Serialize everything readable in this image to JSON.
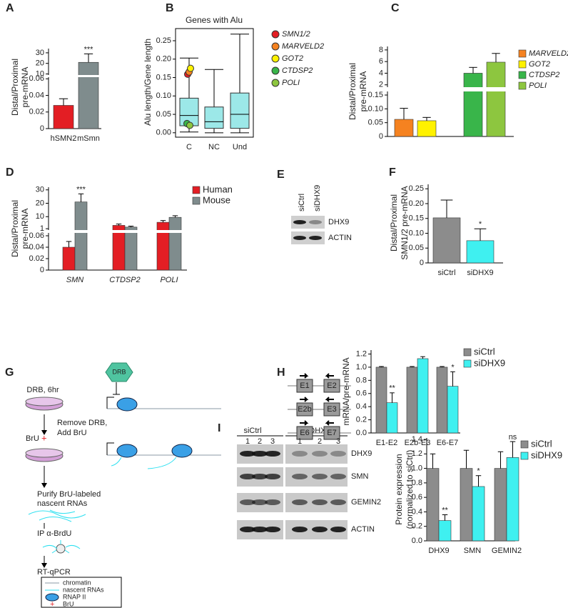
{
  "chart_data": [
    {
      "panel": "A",
      "type": "bar",
      "ylabel": [
        "Distal/Proximal",
        "pre-mRNA"
      ],
      "categories": [
        "hSMN2",
        "mSmn"
      ],
      "series": [
        {
          "colors": [
            "#e31e24",
            "#7f8c8d"
          ],
          "values": [
            0.028,
            21
          ],
          "errors": [
            0.008,
            8
          ],
          "annotations": [
            null,
            "***"
          ]
        }
      ],
      "segments": [
        {
          "ylim": [
            0,
            0.062
          ],
          "yticks": [
            0,
            0.02,
            0.04,
            0.06
          ]
        },
        {
          "ylim": [
            9,
            34
          ],
          "yticks": [
            10,
            20,
            30
          ]
        }
      ]
    },
    {
      "panel": "B",
      "type": "box",
      "title": "Genes with Alu",
      "ylabel": [
        "Alu length/Gene length"
      ],
      "categories": [
        "C",
        "NC",
        "Und"
      ],
      "color": "#9ce8e8",
      "boxes": [
        {
          "whislo": 0.002,
          "q1": 0.019,
          "med": 0.047,
          "q3": 0.094,
          "whishi": 0.203
        },
        {
          "whislo": 0.0,
          "q1": 0.012,
          "med": 0.03,
          "q3": 0.07,
          "whishi": 0.172
        },
        {
          "whislo": 0.0,
          "q1": 0.012,
          "med": 0.05,
          "q3": 0.108,
          "whishi": 0.268
        }
      ],
      "series": [
        {
          "name": "SMN1/2",
          "color": "#e31e24",
          "values": [
            0.159,
            null,
            null
          ]
        },
        {
          "name": "MARVELD2",
          "color": "#f58220",
          "values": [
            0.165,
            null,
            null
          ]
        },
        {
          "name": "GOT2",
          "color": "#fff200",
          "values": [
            0.175,
            null,
            null
          ]
        },
        {
          "name": "CTDSP2",
          "color": "#39b54a",
          "values": [
            0.025,
            null,
            null
          ]
        },
        {
          "name": "POLI",
          "color": "#8dc63f",
          "values": [
            0.02,
            null,
            null
          ]
        }
      ],
      "ylim": [
        -0.012,
        0.283
      ],
      "yticks": [
        {
          "value": 0,
          "label": "0.00"
        },
        0.05,
        {
          "value": 0.1,
          "label": "0.10"
        },
        0.15,
        {
          "value": 0.2,
          "label": "0.20"
        },
        0.25
      ]
    },
    {
      "panel": "C",
      "type": "bar",
      "ylabel": [
        "Distal/Proximal",
        "pre-mRNA"
      ],
      "series": [
        {
          "name": "MARVELD2",
          "color": "#f58220",
          "values": [
            0.062
          ],
          "errors": [
            0.04
          ]
        },
        {
          "name": "GOT2",
          "color": "#fff200",
          "values": [
            0.057
          ],
          "errors": [
            0.012
          ]
        },
        {
          "name": "CTDSP2",
          "color": "#39b54a",
          "values": [
            4.0
          ],
          "errors": [
            1.0
          ]
        },
        {
          "name": "POLI",
          "color": "#8dc63f",
          "values": [
            5.9
          ],
          "errors": [
            1.5
          ]
        }
      ],
      "segments": [
        {
          "ylim": [
            0,
            0.163
          ],
          "yticks": [
            0,
            0.05,
            {
              "value": 0.1,
              "label": "0.10"
            },
            0.15
          ]
        },
        {
          "ylim": [
            1.6,
            8.6
          ],
          "yticks": [
            2,
            4,
            6,
            8
          ]
        }
      ]
    },
    {
      "panel": "D",
      "type": "bar",
      "ylabel": [
        "Distal/Proximal",
        "pre-mRNA"
      ],
      "categories": [
        "SMN",
        "CTDSP2",
        "POLI"
      ],
      "series": [
        {
          "name": "Human",
          "color": "#e31e24",
          "values": [
            0.04,
            3.5,
            5.8
          ],
          "errors": [
            0.01,
            1.0,
            1.3
          ]
        },
        {
          "name": "Mouse",
          "color": "#7f8c8d",
          "values": [
            21,
            2.2,
            9.5
          ],
          "errors": [
            6,
            0.7,
            1.2
          ],
          "annotations": [
            "***",
            null,
            null
          ]
        }
      ],
      "segments": [
        {
          "ylim": [
            0,
            0.065
          ],
          "yticks": [
            0,
            0.02,
            0.04,
            0.06
          ]
        },
        {
          "ylim": [
            0,
            32
          ],
          "yticks": [
            1,
            10,
            20,
            30
          ]
        }
      ]
    },
    {
      "panel": "F",
      "type": "bar",
      "ylabel": [
        "Distal/Proximal",
        "SMN1/2 pre-mRNA"
      ],
      "categories": [
        "siCtrl",
        "siDHX9"
      ],
      "series": [
        {
          "colors": [
            "#8c8c8c",
            "#3ff0f0"
          ],
          "values": [
            0.152,
            0.075
          ],
          "errors": [
            0.06,
            0.04
          ],
          "annotations": [
            null,
            "*"
          ]
        }
      ],
      "ylim": [
        0,
        0.265
      ],
      "yticks": [
        0,
        0.05,
        {
          "value": 0.1,
          "label": "0.10"
        },
        0.15,
        {
          "value": 0.2,
          "label": "0.20"
        },
        0.25
      ]
    },
    {
      "type": "bar",
      "ylabel": [
        "mRNA/pre-mRNA"
      ],
      "categories": [
        "E1-E2",
        "E2b-E3",
        "E6-E7"
      ],
      "series": [
        {
          "name": "siCtrl",
          "color": "#8c8c8c",
          "values": [
            1.0,
            1.0,
            1.0
          ],
          "errors": [
            0.01,
            0.01,
            0.01
          ]
        },
        {
          "name": "siDHX9",
          "color": "#3ff0f0",
          "values": [
            0.46,
            1.13,
            0.71
          ],
          "errors": [
            0.15,
            0.03,
            0.22
          ],
          "annotations": [
            "**",
            null,
            "*"
          ]
        }
      ],
      "ylim": [
        0,
        1.26
      ],
      "yticks": [
        {
          "value": 0,
          "label": "0.0"
        },
        0.2,
        0.4,
        0.6,
        0.8,
        {
          "value": 1,
          "label": "1.0"
        },
        1.2
      ]
    },
    {
      "type": "bar",
      "ylabel": [
        "Protein expression",
        "(normalized to siCtrl)"
      ],
      "categories": [
        "DHX9",
        "SMN",
        "GEMIN2"
      ],
      "series": [
        {
          "name": "siCtrl",
          "color": "#8c8c8c",
          "values": [
            1.0,
            1.0,
            1.0
          ],
          "errors": [
            0.2,
            0.25,
            0.23
          ]
        },
        {
          "name": "siDHX9",
          "color": "#3ff0f0",
          "values": [
            0.28,
            0.75,
            1.15
          ],
          "errors": [
            0.08,
            0.15,
            0.22
          ],
          "annotations": [
            "**",
            "*",
            "ns"
          ]
        }
      ],
      "ylim": [
        0,
        1.42
      ],
      "yticks": [
        {
          "value": 0,
          "label": "0.0"
        },
        0.2,
        0.4,
        0.6,
        0.8,
        {
          "value": 1,
          "label": "1.0"
        },
        1.2,
        1.4
      ]
    }
  ],
  "blot_e": {
    "panel": "E",
    "lanes": [
      "siCtrl",
      "siDHX9"
    ],
    "rows": [
      "DHX9",
      "ACTIN"
    ]
  },
  "scheme_g": {
    "panel": "G",
    "drug": "DRB",
    "step1": "DRB, 6hr",
    "step2": [
      "Remove DRB,",
      "Add BrU"
    ],
    "label": "BrU",
    "step3": [
      "Purify BrU-labeled",
      "nascent RNAs"
    ],
    "step4": "IP α-BrdU",
    "step5": "RT-qPCR",
    "legend": [
      "chromatin",
      "nascent RNAs",
      "RNAP II",
      "BrU"
    ]
  },
  "primers_h": {
    "panel": "H",
    "pairs": [
      [
        "E1",
        "E2"
      ],
      [
        "E2b",
        "E3"
      ],
      [
        "E6",
        "E7"
      ]
    ]
  },
  "blot_i": {
    "panel": "I",
    "groups": [
      {
        "name": "siCtrl",
        "lanes": [
          "1",
          "2",
          "3"
        ]
      },
      {
        "name": "siDHX9",
        "lanes": [
          "1",
          "2",
          "3"
        ]
      }
    ],
    "rows": [
      "DHX9",
      "SMN",
      "GEMIN2",
      "ACTIN"
    ]
  }
}
